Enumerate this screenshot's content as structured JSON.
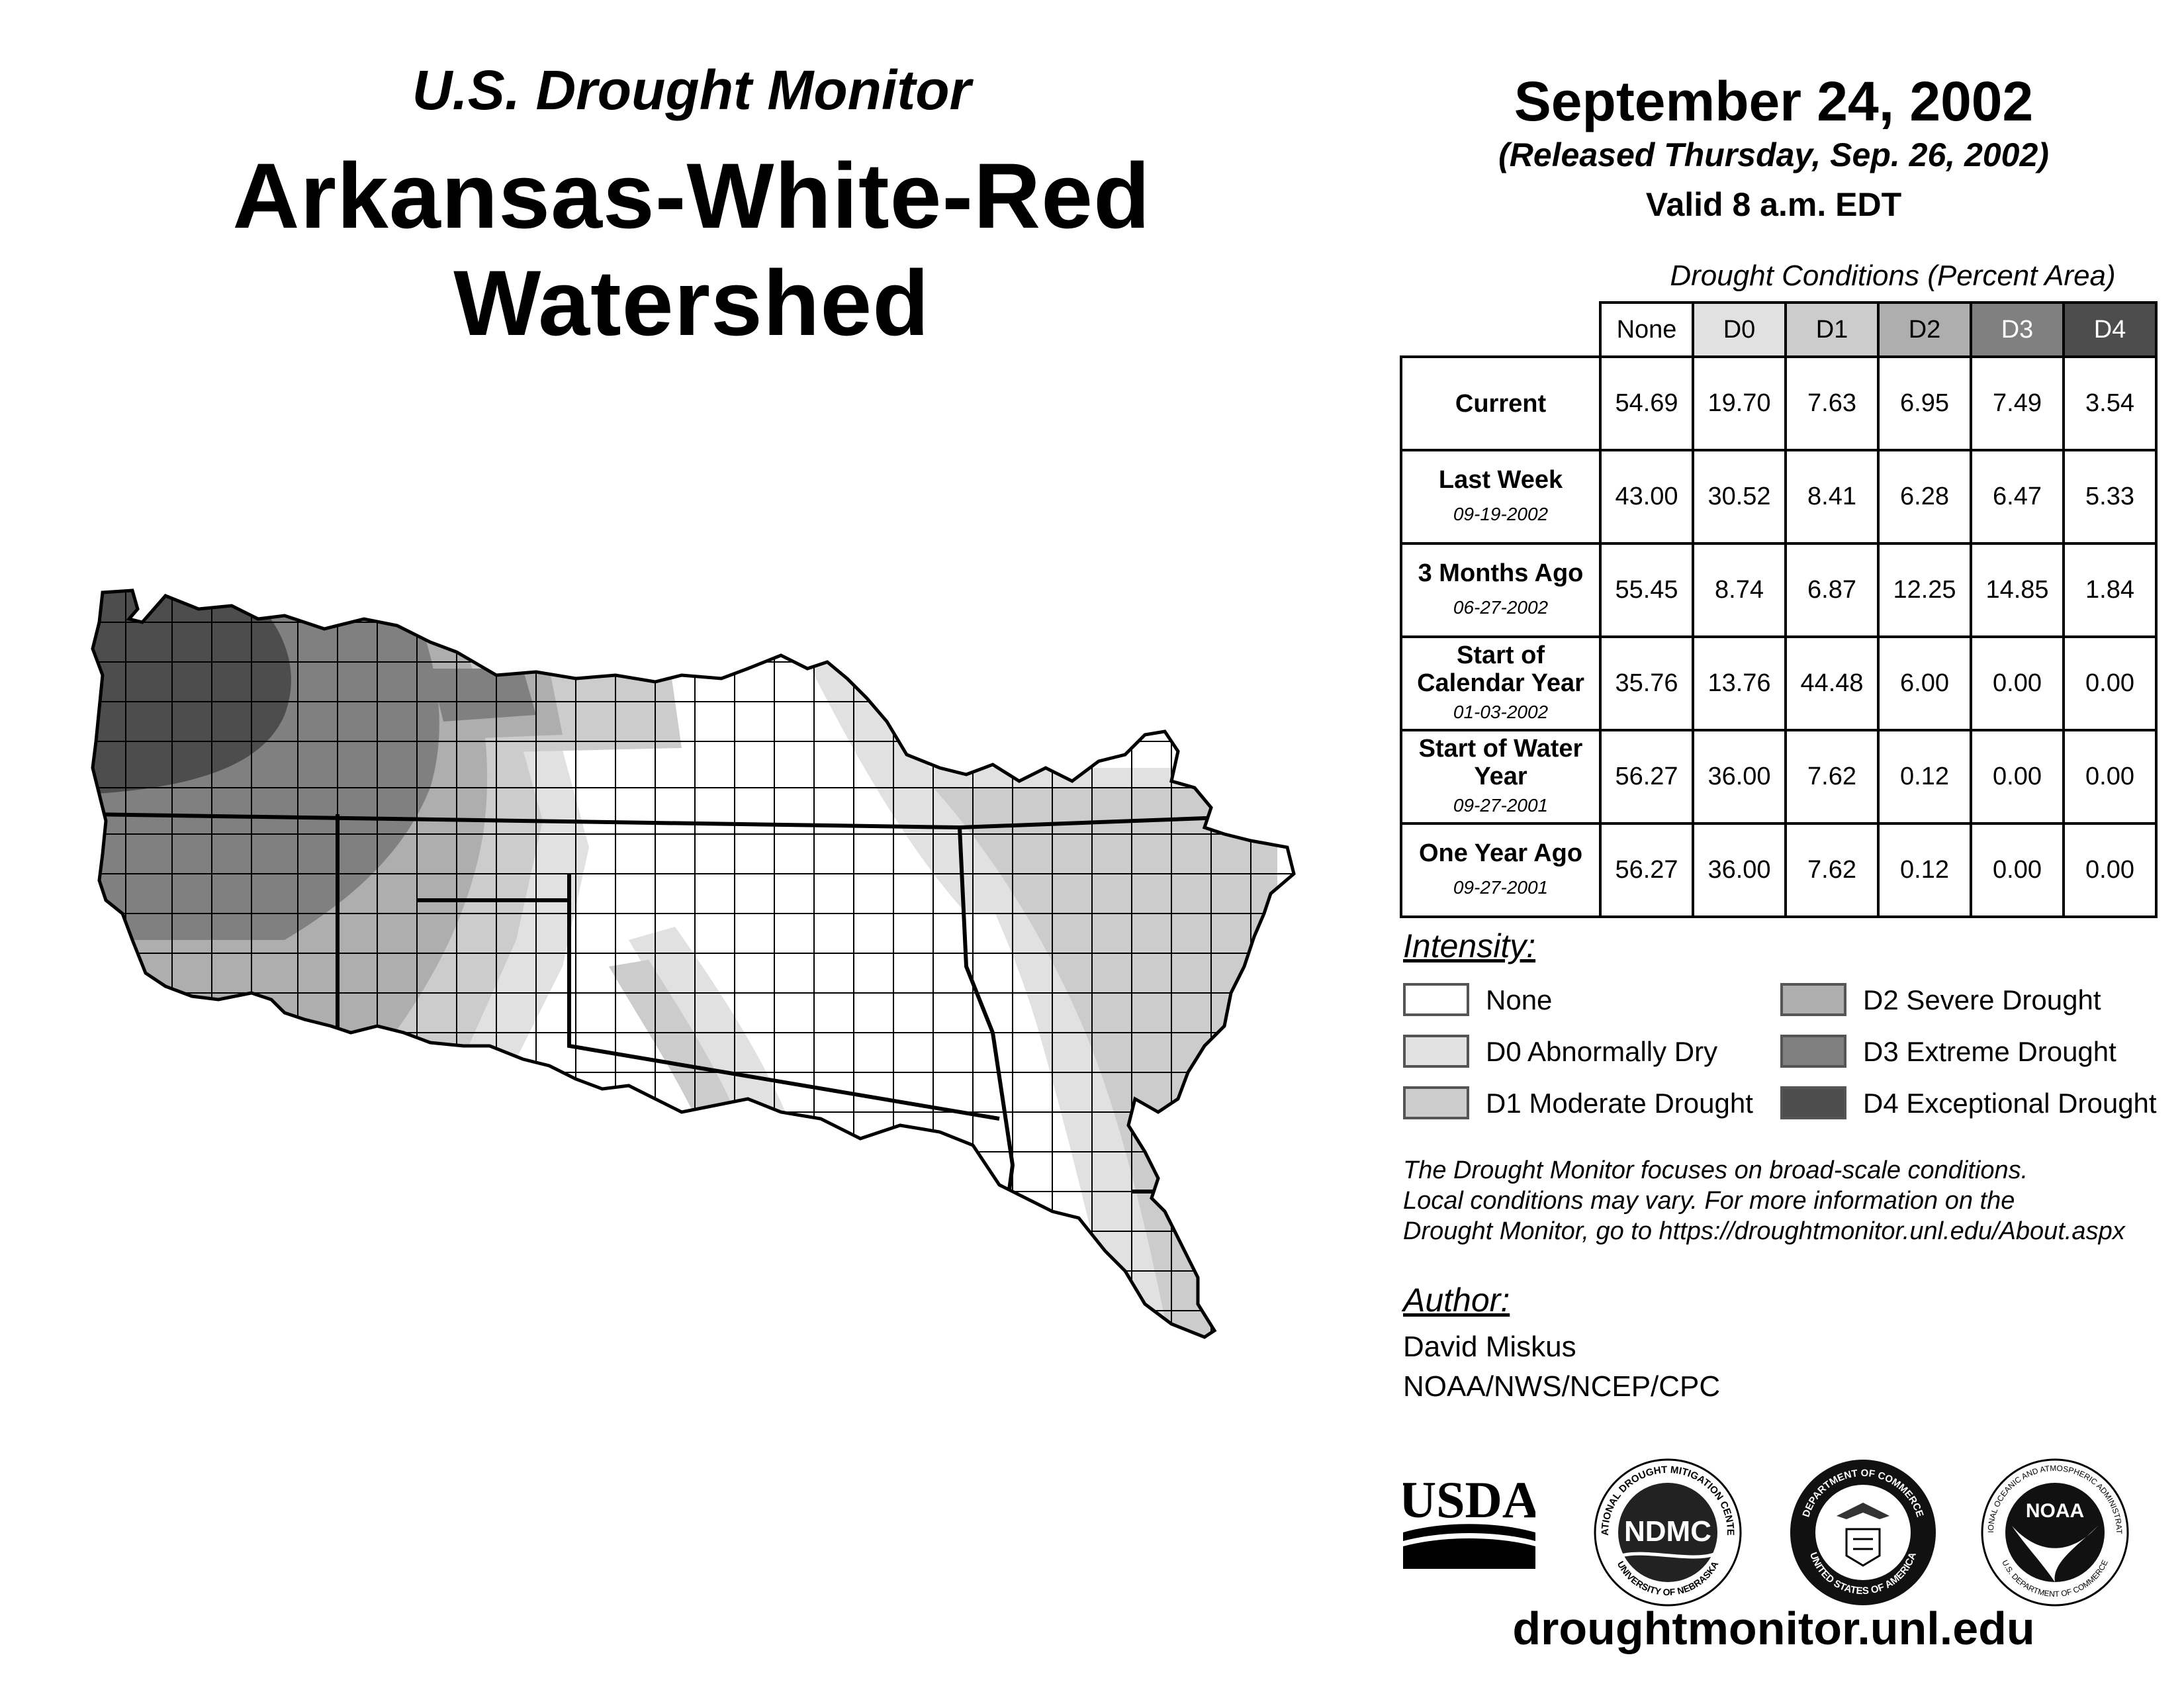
{
  "header": {
    "subtitle": "U.S. Drought Monitor",
    "title": "Arkansas-White-Red Watershed",
    "date": "September 24, 2002",
    "released": "(Released Thursday, Sep. 26, 2002)",
    "valid": "Valid 8 a.m. EDT"
  },
  "table": {
    "title": "Drought Conditions (Percent Area)",
    "columns": [
      "None",
      "D0",
      "D1",
      "D2",
      "D3",
      "D4"
    ],
    "rows": [
      {
        "label": "Current",
        "sub": "",
        "values": [
          "54.69",
          "19.70",
          "7.63",
          "6.95",
          "7.49",
          "3.54"
        ]
      },
      {
        "label": "Last Week",
        "sub": "09-19-2002",
        "values": [
          "43.00",
          "30.52",
          "8.41",
          "6.28",
          "6.47",
          "5.33"
        ]
      },
      {
        "label": "3 Months Ago",
        "sub": "06-27-2002",
        "values": [
          "55.45",
          "8.74",
          "6.87",
          "12.25",
          "14.85",
          "1.84"
        ]
      },
      {
        "label": "Start of Calendar Year",
        "sub": "01-03-2002",
        "values": [
          "35.76",
          "13.76",
          "44.48",
          "6.00",
          "0.00",
          "0.00"
        ]
      },
      {
        "label": "Start of Water Year",
        "sub": "09-27-2001",
        "values": [
          "56.27",
          "36.00",
          "7.62",
          "0.12",
          "0.00",
          "0.00"
        ]
      },
      {
        "label": "One Year Ago",
        "sub": "09-27-2001",
        "values": [
          "56.27",
          "36.00",
          "7.62",
          "0.12",
          "0.00",
          "0.00"
        ]
      }
    ]
  },
  "legend": {
    "heading": "Intensity:",
    "items": [
      {
        "label": "None",
        "color": "#ffffff"
      },
      {
        "label": "D0 Abnormally Dry",
        "color": "#e1e1e1"
      },
      {
        "label": "D1 Moderate Drought",
        "color": "#cccccc"
      },
      {
        "label": "D2 Severe Drought",
        "color": "#aeaeae"
      },
      {
        "label": "D3 Extreme Drought",
        "color": "#808080"
      },
      {
        "label": "D4 Exceptional Drought",
        "color": "#4d4d4d"
      }
    ]
  },
  "note": {
    "line1": "The Drought Monitor focuses on broad-scale conditions.",
    "line2": "Local conditions may vary. For more information on the",
    "line3": "Drought Monitor, go to https://droughtmonitor.unl.edu/About.aspx"
  },
  "author": {
    "heading": "Author:",
    "name": "David Miskus",
    "org": "NOAA/NWS/NCEP/CPC"
  },
  "logos": {
    "usda": "USDA",
    "ndmc": "NDMC",
    "ndmc_ring": "NATIONAL DROUGHT MITIGATION CENTER",
    "ndmc_ring_bottom": "UNIVERSITY OF NEBRASKA",
    "doc_ring": "DEPARTMENT OF COMMERCE",
    "doc_ring_bottom": "UNITED STATES OF AMERICA",
    "noaa": "NOAA",
    "noaa_ring": "NATIONAL OCEANIC AND ATMOSPHERIC ADMINISTRATION",
    "noaa_ring_bottom": "U.S. DEPARTMENT OF COMMERCE"
  },
  "footer": {
    "url": "droughtmonitor.unl.edu"
  },
  "colors": {
    "none": "#ffffff",
    "d0": "#e1e1e1",
    "d1": "#cccccc",
    "d2": "#aeaeae",
    "d3": "#808080",
    "d4": "#4d4d4d"
  }
}
